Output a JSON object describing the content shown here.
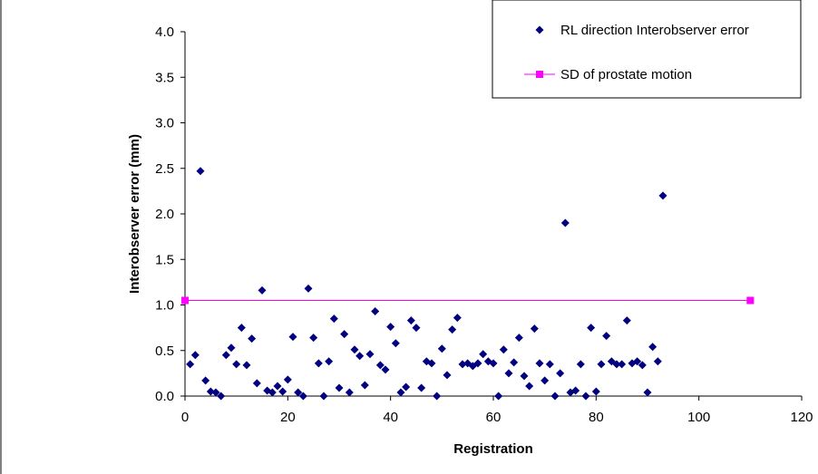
{
  "chart_data": {
    "type": "scatter",
    "xlabel": "Registration",
    "ylabel": "Interobserver error (mm)",
    "xlim": [
      0,
      120
    ],
    "ylim": [
      0,
      4
    ],
    "x_ticks": [
      "0",
      "20",
      "40",
      "60",
      "80",
      "100",
      "120"
    ],
    "y_ticks": [
      "0.0",
      "0.5",
      "1.0",
      "1.5",
      "2.0",
      "2.5",
      "3.0",
      "3.5",
      "4.0"
    ],
    "grid": false,
    "legend_position": "top-right",
    "series": [
      {
        "name": "RL direction Interobserver error",
        "kind": "scatter",
        "marker": "diamond",
        "color": "#000080",
        "points": [
          [
            1,
            0.35
          ],
          [
            2,
            0.45
          ],
          [
            3,
            2.47
          ],
          [
            4,
            0.17
          ],
          [
            5,
            0.05
          ],
          [
            6,
            0.04
          ],
          [
            7,
            0.0
          ],
          [
            8,
            0.45
          ],
          [
            9,
            0.53
          ],
          [
            10,
            0.35
          ],
          [
            11,
            0.75
          ],
          [
            12,
            0.34
          ],
          [
            13,
            0.63
          ],
          [
            14,
            0.14
          ],
          [
            15,
            1.16
          ],
          [
            16,
            0.06
          ],
          [
            17,
            0.04
          ],
          [
            18,
            0.11
          ],
          [
            19,
            0.05
          ],
          [
            20,
            0.18
          ],
          [
            21,
            0.65
          ],
          [
            22,
            0.04
          ],
          [
            23,
            0.0
          ],
          [
            24,
            1.18
          ],
          [
            25,
            0.64
          ],
          [
            26,
            0.36
          ],
          [
            27,
            0.0
          ],
          [
            28,
            0.38
          ],
          [
            29,
            0.85
          ],
          [
            30,
            0.09
          ],
          [
            31,
            0.68
          ],
          [
            32,
            0.04
          ],
          [
            33,
            0.51
          ],
          [
            34,
            0.44
          ],
          [
            35,
            0.12
          ],
          [
            36,
            0.46
          ],
          [
            37,
            0.93
          ],
          [
            38,
            0.34
          ],
          [
            39,
            0.29
          ],
          [
            40,
            0.76
          ],
          [
            41,
            0.58
          ],
          [
            42,
            0.04
          ],
          [
            43,
            0.1
          ],
          [
            44,
            0.83
          ],
          [
            45,
            0.75
          ],
          [
            46,
            0.09
          ],
          [
            47,
            0.38
          ],
          [
            48,
            0.36
          ],
          [
            49,
            0.0
          ],
          [
            50,
            0.52
          ],
          [
            51,
            0.23
          ],
          [
            52,
            0.73
          ],
          [
            53,
            0.86
          ],
          [
            54,
            0.35
          ],
          [
            55,
            0.36
          ],
          [
            56,
            0.33
          ],
          [
            57,
            0.36
          ],
          [
            58,
            0.46
          ],
          [
            59,
            0.38
          ],
          [
            60,
            0.36
          ],
          [
            61,
            0.0
          ],
          [
            62,
            0.51
          ],
          [
            63,
            0.25
          ],
          [
            64,
            0.37
          ],
          [
            65,
            0.64
          ],
          [
            66,
            0.22
          ],
          [
            67,
            0.11
          ],
          [
            68,
            0.74
          ],
          [
            69,
            0.36
          ],
          [
            70,
            0.17
          ],
          [
            71,
            0.35
          ],
          [
            72,
            0.0
          ],
          [
            73,
            0.25
          ],
          [
            74,
            1.9
          ],
          [
            75,
            0.04
          ],
          [
            76,
            0.06
          ],
          [
            77,
            0.35
          ],
          [
            78,
            0.0
          ],
          [
            79,
            0.75
          ],
          [
            80,
            0.05
          ],
          [
            81,
            0.35
          ],
          [
            82,
            0.66
          ],
          [
            83,
            0.38
          ],
          [
            84,
            0.35
          ],
          [
            85,
            0.35
          ],
          [
            86,
            0.83
          ],
          [
            87,
            0.36
          ],
          [
            88,
            0.38
          ],
          [
            89,
            0.34
          ],
          [
            90,
            0.04
          ],
          [
            91,
            0.54
          ],
          [
            92,
            0.38
          ],
          [
            93,
            2.2
          ]
        ]
      },
      {
        "name": "SD of prostate motion",
        "kind": "line",
        "marker": "square",
        "color": "#FF00FF",
        "points": [
          [
            0,
            1.05
          ],
          [
            110,
            1.05
          ]
        ]
      }
    ]
  }
}
